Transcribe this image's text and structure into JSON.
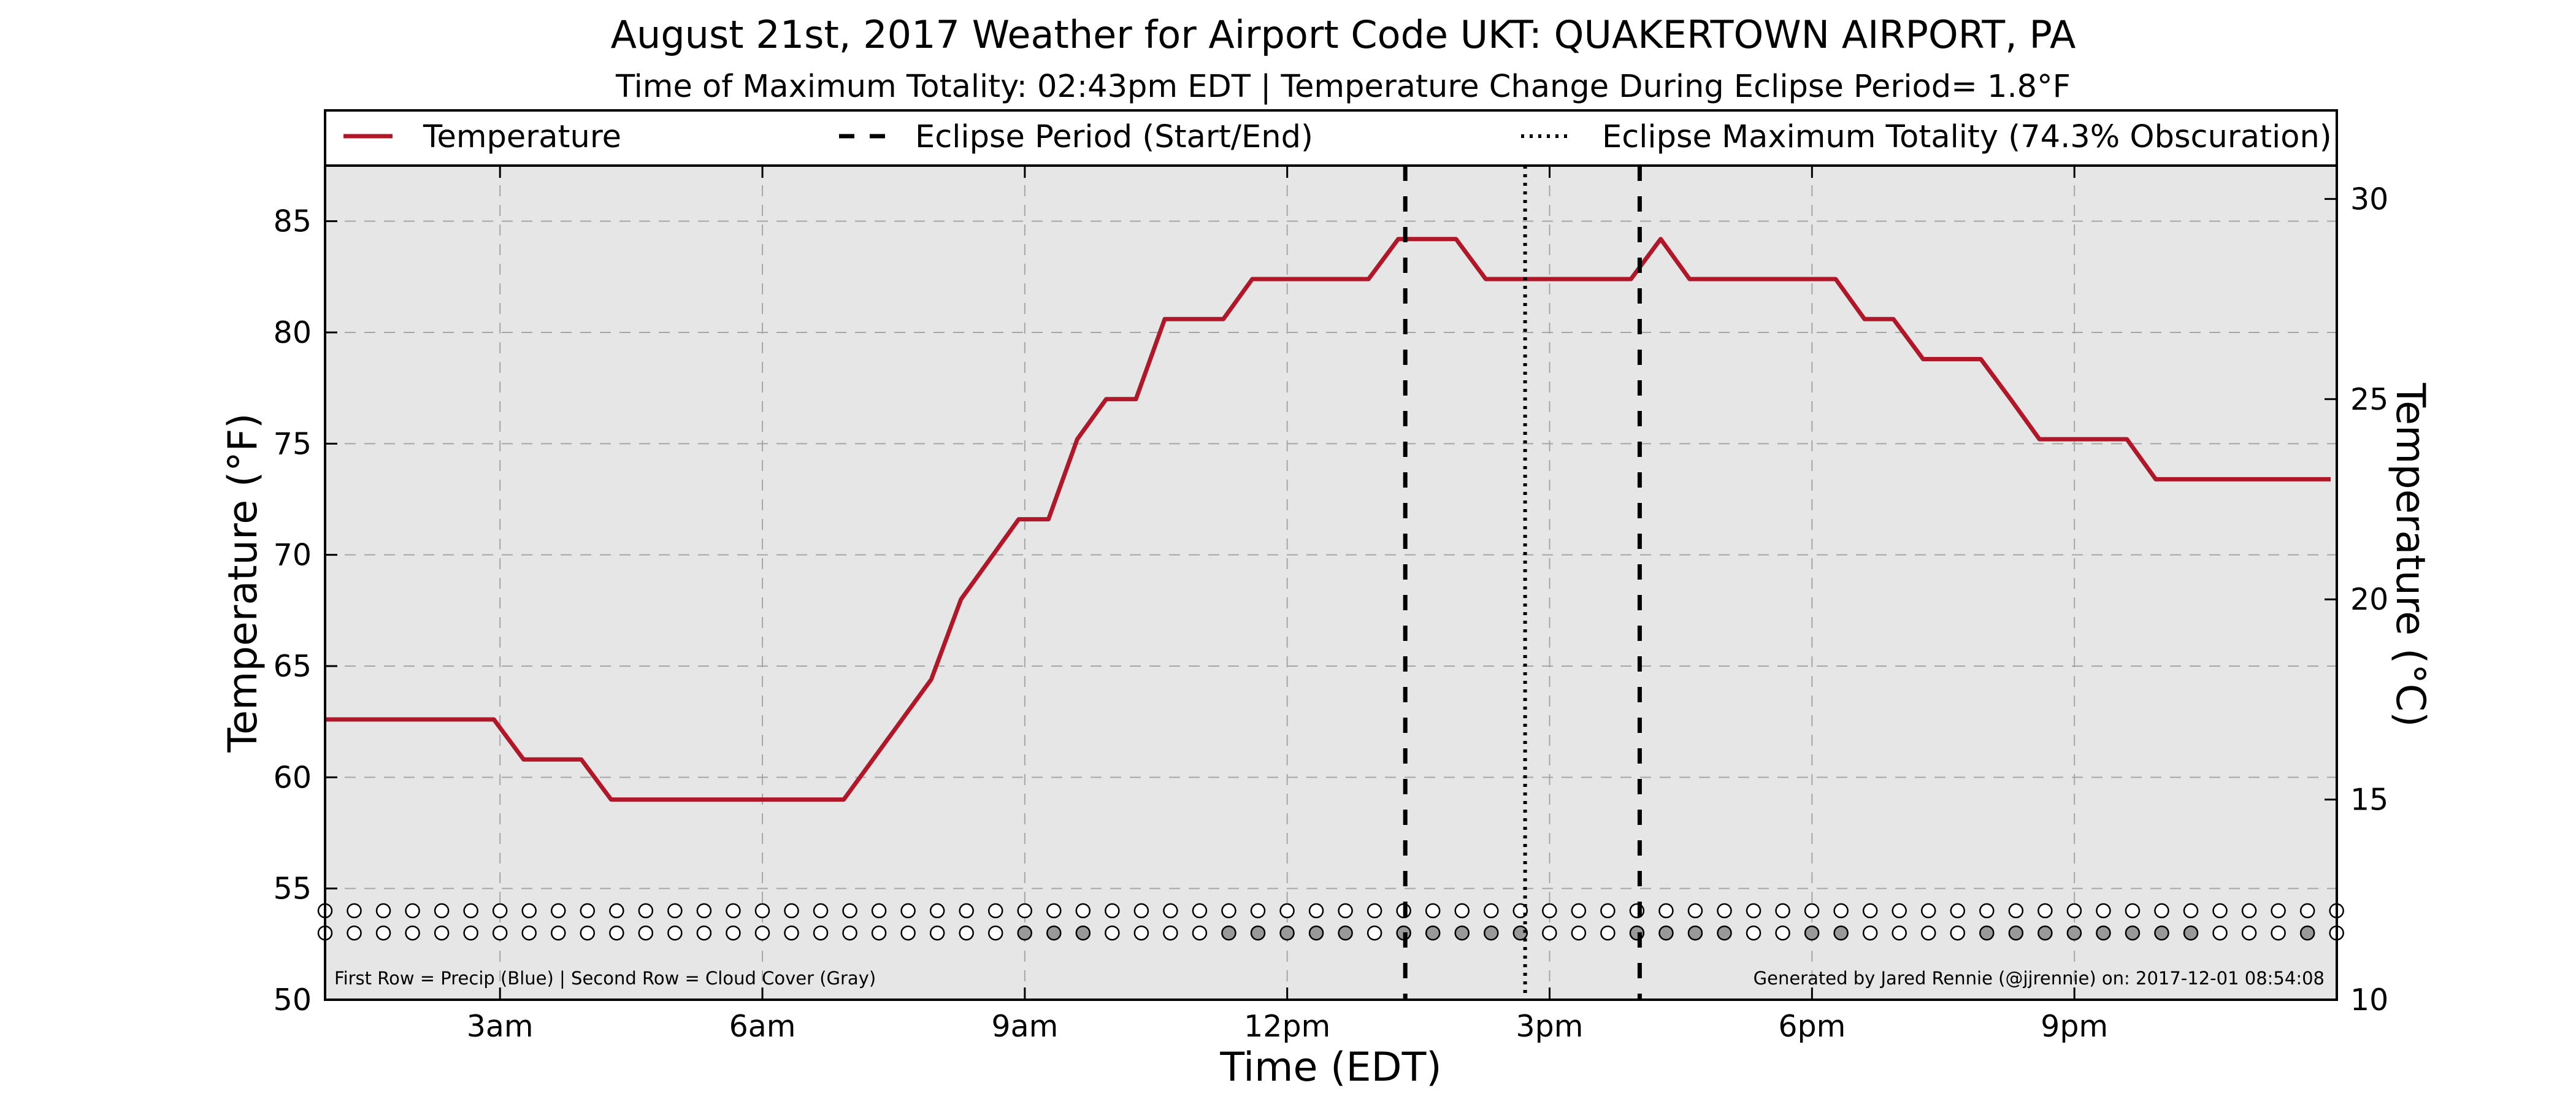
{
  "chart_data": {
    "type": "line",
    "title": "August 21st, 2017 Weather for Airport Code UKT: QUAKERTOWN AIRPORT, PA",
    "subtitle": "Time of Maximum Totality: 02:43pm EDT | Temperature Change During Eclipse Period= 1.8°F",
    "xlabel": "Time (EDT)",
    "ylabel": "Temperature (°F)",
    "ylabel_right": "Temperature (°C)",
    "xlim": [
      1.0,
      24.0
    ],
    "ylim": [
      50,
      87.5
    ],
    "ylim_right": [
      10,
      30.833
    ],
    "x_ticks": [
      {
        "value": 3,
        "label": "3am"
      },
      {
        "value": 6,
        "label": "6am"
      },
      {
        "value": 9,
        "label": "9am"
      },
      {
        "value": 12,
        "label": "12pm"
      },
      {
        "value": 15,
        "label": "3pm"
      },
      {
        "value": 18,
        "label": "6pm"
      },
      {
        "value": 21,
        "label": "9pm"
      }
    ],
    "y_ticks": [
      50,
      55,
      60,
      65,
      70,
      75,
      80,
      85
    ],
    "y_ticks_right": [
      10,
      15,
      20,
      25,
      30
    ],
    "grid": true,
    "legend_position": "top",
    "legend": [
      {
        "style": "solid",
        "label": "Temperature"
      },
      {
        "style": "dashed",
        "label": "Eclipse Period (Start/End)"
      },
      {
        "style": "dotted",
        "label": "Eclipse Maximum Totality (74.3% Obscuration)"
      }
    ],
    "series": [
      {
        "name": "Temperature",
        "color": "#b0182a",
        "x": [
          1.0,
          2.93,
          3.27,
          3.93,
          4.27,
          6.93,
          7.93,
          8.27,
          8.93,
          9.27,
          9.6,
          9.93,
          10.27,
          10.6,
          10.93,
          11.27,
          11.6,
          12.27,
          12.93,
          13.27,
          13.6,
          13.93,
          14.27,
          15.6,
          15.93,
          16.27,
          16.6,
          16.93,
          17.27,
          17.93,
          18.27,
          18.6,
          18.93,
          19.27,
          19.93,
          20.27,
          20.6,
          21.27,
          21.6,
          21.93,
          22.27,
          23.93
        ],
        "y": [
          62.6,
          62.6,
          60.8,
          60.8,
          59.0,
          59.0,
          64.4,
          68.0,
          71.6,
          71.6,
          75.2,
          77.0,
          77.0,
          80.6,
          80.6,
          80.6,
          82.4,
          82.4,
          82.4,
          84.2,
          84.2,
          84.2,
          82.4,
          82.4,
          82.4,
          84.2,
          82.4,
          82.4,
          82.4,
          82.4,
          82.4,
          80.6,
          80.6,
          78.8,
          78.8,
          77.0,
          75.2,
          75.2,
          75.2,
          73.4,
          73.4,
          73.4
        ]
      }
    ],
    "eclipse_start": 13.35,
    "eclipse_end": 16.03,
    "eclipse_max": 14.72,
    "marker_rows": {
      "precip_y": 54.0,
      "cloud_y": 53.0,
      "start": 1.0,
      "end": 24.0,
      "step": 0.3333,
      "clear_color": "#ffffff",
      "cover_color": "#999999",
      "precip_color": "#1f4fd1",
      "precip_values": [],
      "cloud_cover_times": [
        8.93,
        9.27,
        9.6,
        11.27,
        11.6,
        11.93,
        12.27,
        12.6,
        13.27,
        13.6,
        13.93,
        14.27,
        14.6,
        15.93,
        16.27,
        16.6,
        16.93,
        17.93,
        18.27,
        19.93,
        20.27,
        20.6,
        20.93,
        21.27,
        21.6,
        21.93,
        22.27,
        23.6
      ]
    },
    "footnote_left": "First Row = Precip (Blue) | Second Row = Cloud Cover (Gray)",
    "footnote_right": "Generated by Jared Rennie (@jjrennie) on: 2017-12-01 08:54:08"
  }
}
